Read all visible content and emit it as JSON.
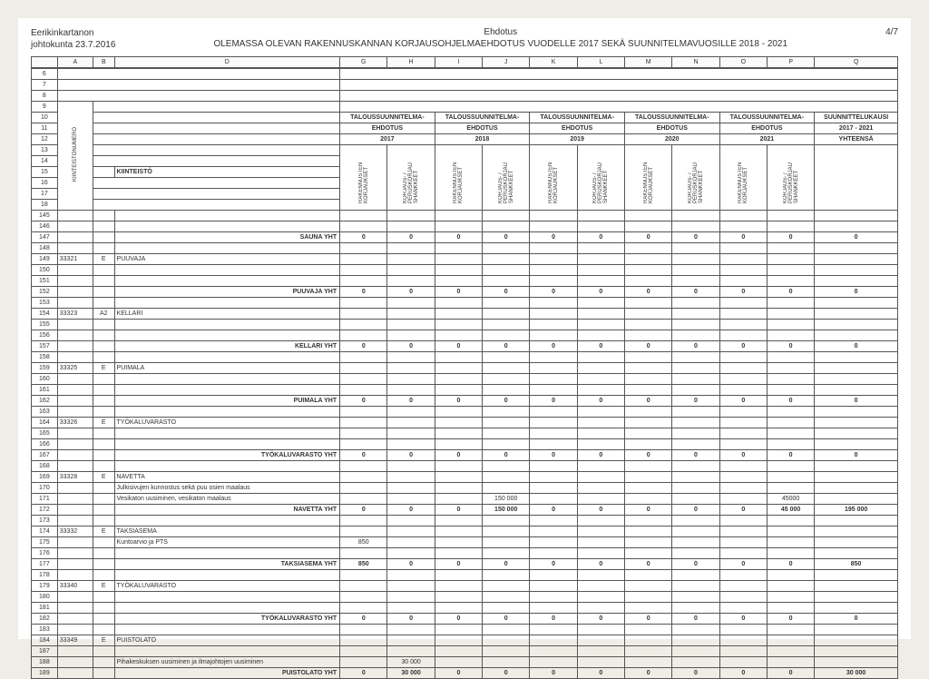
{
  "header": {
    "org1": "Eerikinkartanon",
    "org2": "johtokunta 23.7.2016",
    "mid1": "Ehdotus",
    "mid2": "OLEMASSA OLEVAN RAKENNUSKANNAN KORJAUSOHJELMAEHDOTUS VUODELLE 2017 SEKÄ SUUNNITELMAVUOSILLE 2018 - 2021",
    "page": "4/7"
  },
  "colLetters": {
    "A": "A",
    "B": "B",
    "D": "D",
    "G": "G",
    "H": "H",
    "I": "I",
    "J": "J",
    "K": "K",
    "L": "L",
    "M": "M",
    "N": "N",
    "O": "O",
    "P": "P",
    "Q": "Q"
  },
  "groupHeads": {
    "plan": "TALOUSSUUNNITELMA-",
    "prop": "EHDOTUS",
    "y2017": "2017",
    "y2018": "2018",
    "y2019": "2019",
    "y2020": "2020",
    "y2021": "2021",
    "period": "SUUNNITTELUKAUSI",
    "periodYears": "2017 - 2021",
    "total": "YHTEENSÄ"
  },
  "vcols": {
    "rk": "RAKENNUSTEN KORJAUKSET",
    "kps": "KORJAUS- / PERUSKORJAU SHANKKEET"
  },
  "sidelabel": "KIINTEISTÖNUMERO",
  "kiint": "KIINTEISTÖ",
  "rows": [
    {
      "n": "6"
    },
    {
      "n": "7"
    },
    {
      "n": "8"
    },
    {
      "n": "9"
    },
    {
      "n": "10"
    },
    {
      "n": "11"
    },
    {
      "n": "12"
    },
    {
      "n": "13"
    },
    {
      "n": "14"
    },
    {
      "n": "15"
    },
    {
      "n": "16"
    },
    {
      "n": "17"
    },
    {
      "n": "18"
    },
    {
      "n": "145"
    },
    {
      "n": "146"
    },
    {
      "n": "147",
      "d": "SAUNA YHT",
      "sum": true,
      "v": [
        "0",
        "0",
        "0",
        "0",
        "0",
        "0",
        "0",
        "0",
        "0",
        "0",
        "0"
      ]
    },
    {
      "n": "148"
    },
    {
      "n": "149",
      "a": "33321",
      "b": "E",
      "d": "PUUVAJA"
    },
    {
      "n": "150"
    },
    {
      "n": "151"
    },
    {
      "n": "152",
      "d": "PUUVAJA YHT",
      "sum": true,
      "v": [
        "0",
        "0",
        "0",
        "0",
        "0",
        "0",
        "0",
        "0",
        "0",
        "0",
        "0"
      ]
    },
    {
      "n": "153"
    },
    {
      "n": "154",
      "a": "33323",
      "b": "A2",
      "d": "KELLARI"
    },
    {
      "n": "155"
    },
    {
      "n": "156"
    },
    {
      "n": "157",
      "d": "KELLARI YHT",
      "sum": true,
      "v": [
        "0",
        "0",
        "0",
        "0",
        "0",
        "0",
        "0",
        "0",
        "0",
        "0",
        "0"
      ]
    },
    {
      "n": "158"
    },
    {
      "n": "159",
      "a": "33325",
      "b": "E",
      "d": "PUIMALA"
    },
    {
      "n": "160"
    },
    {
      "n": "161"
    },
    {
      "n": "162",
      "d": "PUIMALA YHT",
      "sum": true,
      "v": [
        "0",
        "0",
        "0",
        "0",
        "0",
        "0",
        "0",
        "0",
        "0",
        "0",
        "0"
      ]
    },
    {
      "n": "163"
    },
    {
      "n": "164",
      "a": "33326",
      "b": "E",
      "d": "TYÖKALUVARASTO"
    },
    {
      "n": "165"
    },
    {
      "n": "166"
    },
    {
      "n": "167",
      "d": "TYÖKALUVARASTO YHT",
      "sum": true,
      "v": [
        "0",
        "0",
        "0",
        "0",
        "0",
        "0",
        "0",
        "0",
        "0",
        "0",
        "0"
      ]
    },
    {
      "n": "168"
    },
    {
      "n": "169",
      "a": "33328",
      "b": "E",
      "d": "NAVETTA"
    },
    {
      "n": "170",
      "d": "Julkisivujen kunnostus sekä puu osien maalaus"
    },
    {
      "n": "171",
      "d": "Vesikaton uusiminen, vesikaton maalaus",
      "v": [
        "",
        "",
        "",
        "150 000",
        "",
        "",
        "",
        "",
        "",
        "45000",
        ""
      ]
    },
    {
      "n": "172",
      "d": "NAVETTA YHT",
      "sum": true,
      "v": [
        "0",
        "0",
        "0",
        "150 000",
        "0",
        "0",
        "0",
        "0",
        "0",
        "45 000",
        "195 000"
      ]
    },
    {
      "n": "173"
    },
    {
      "n": "174",
      "a": "33332",
      "b": "E",
      "d": "TAKSIASEMA"
    },
    {
      "n": "175",
      "d": "Kuntoarvio ja PTS",
      "v": [
        "850",
        "",
        "",
        "",
        "",
        "",
        "",
        "",
        "",
        "",
        ""
      ]
    },
    {
      "n": "176"
    },
    {
      "n": "177",
      "d": "TAKSIASEMA YHT",
      "sum": true,
      "v": [
        "850",
        "0",
        "0",
        "0",
        "0",
        "0",
        "0",
        "0",
        "0",
        "0",
        "850"
      ]
    },
    {
      "n": "178"
    },
    {
      "n": "179",
      "a": "33340",
      "b": "E",
      "d": "TYÖKALUVARASTO"
    },
    {
      "n": "180"
    },
    {
      "n": "181"
    },
    {
      "n": "182",
      "d": "TYÖKALUVARASTO YHT",
      "sum": true,
      "v": [
        "0",
        "0",
        "0",
        "0",
        "0",
        "0",
        "0",
        "0",
        "0",
        "0",
        "0"
      ]
    },
    {
      "n": "183"
    },
    {
      "n": "184",
      "a": "33349",
      "b": "E",
      "d": "PUISTOLATO"
    },
    {
      "n": "187"
    },
    {
      "n": "188",
      "d": "Pihakeskuksen uusiminen ja ilmajohtojen uusiminen",
      "v": [
        "",
        "30 000",
        "",
        "",
        "",
        "",
        "",
        "",
        "",
        "",
        ""
      ]
    },
    {
      "n": "189",
      "d": "PUISTOLATO YHT",
      "sum": true,
      "v": [
        "0",
        "30 000",
        "0",
        "0",
        "0",
        "0",
        "0",
        "0",
        "0",
        "0",
        "30 000"
      ]
    }
  ]
}
